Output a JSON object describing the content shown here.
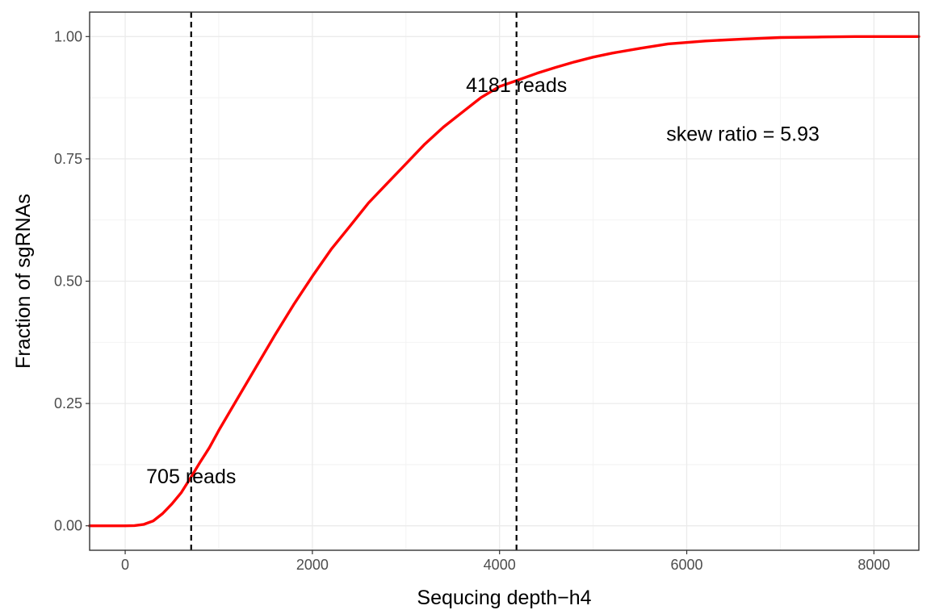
{
  "chart_data": {
    "type": "line",
    "title": "",
    "xlabel": "Sequcing depth−h4",
    "ylabel": "Fraction of sgRNAs",
    "xlim": [
      -380,
      8480
    ],
    "ylim": [
      -0.05,
      1.05
    ],
    "x_ticks": [
      0,
      2000,
      4000,
      6000,
      8000
    ],
    "x_tick_labels": [
      "0",
      "2000",
      "4000",
      "6000",
      "8000"
    ],
    "x_minor_ticks": [
      1000,
      3000,
      5000,
      7000
    ],
    "y_ticks": [
      0,
      0.25,
      0.5,
      0.75,
      1.0
    ],
    "y_tick_labels": [
      "0.00",
      "0.25",
      "0.50",
      "0.75",
      "1.00"
    ],
    "y_minor_ticks": [
      0.125,
      0.375,
      0.625,
      0.875
    ],
    "grid": true,
    "series": [
      {
        "color": "#ff0000",
        "x": [
          -380,
          0,
          100,
          200,
          300,
          400,
          500,
          600,
          705,
          800,
          900,
          1000,
          1200,
          1400,
          1600,
          1800,
          2000,
          2200,
          2400,
          2600,
          2800,
          3000,
          3200,
          3400,
          3600,
          3800,
          4000,
          4181,
          4400,
          4600,
          4800,
          5000,
          5200,
          5500,
          5800,
          6200,
          6600,
          7000,
          7400,
          7800,
          8200,
          8480
        ],
        "y": [
          0,
          0,
          0.0005,
          0.003,
          0.01,
          0.025,
          0.045,
          0.068,
          0.1,
          0.13,
          0.16,
          0.195,
          0.26,
          0.325,
          0.39,
          0.452,
          0.51,
          0.565,
          0.612,
          0.66,
          0.7,
          0.74,
          0.78,
          0.815,
          0.845,
          0.875,
          0.898,
          0.91,
          0.925,
          0.937,
          0.948,
          0.958,
          0.966,
          0.976,
          0.985,
          0.991,
          0.995,
          0.998,
          0.999,
          1.0,
          1.0,
          1.0
        ]
      }
    ],
    "vlines": [
      {
        "x": 705,
        "style": "dashed",
        "color": "#000000"
      },
      {
        "x": 4181,
        "style": "dashed",
        "color": "#000000"
      }
    ],
    "annotations": [
      {
        "text": "705 reads",
        "x": 705,
        "y": 0.1
      },
      {
        "text": "4181 reads",
        "x": 4181,
        "y": 0.9
      },
      {
        "text": "skew ratio = 5.93",
        "x": 6600,
        "y": 0.8
      }
    ]
  }
}
